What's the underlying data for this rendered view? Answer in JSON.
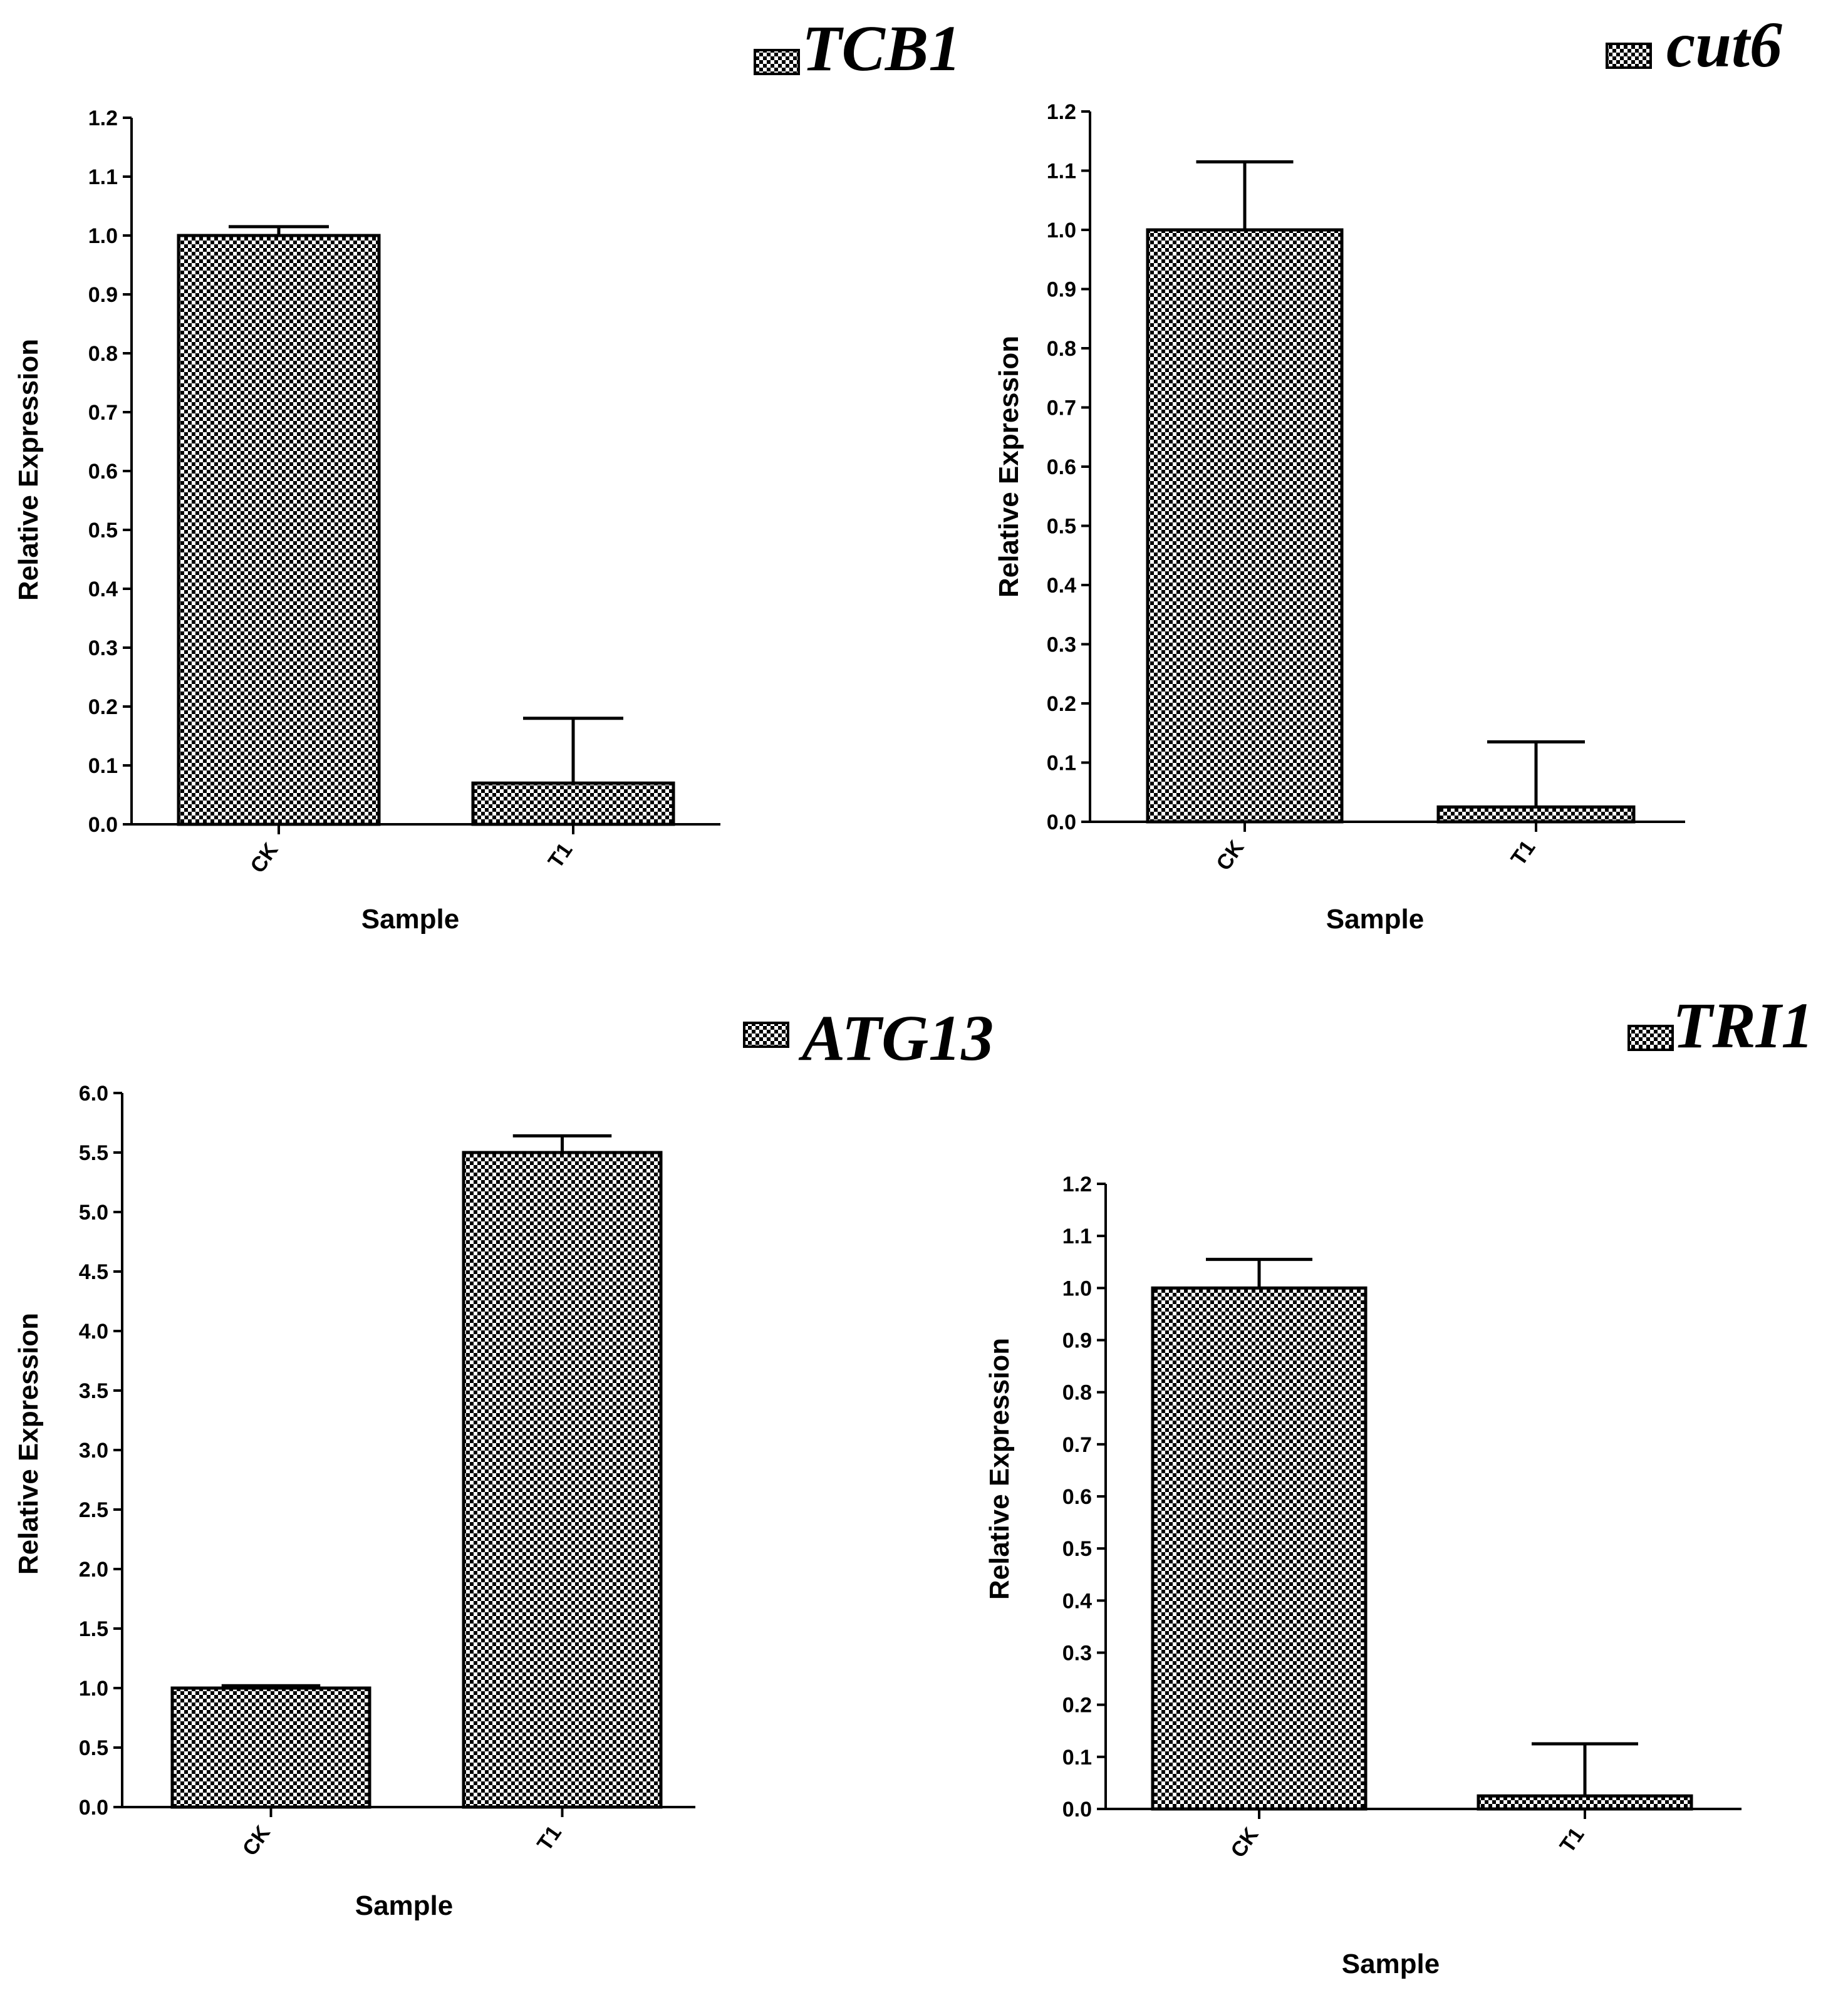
{
  "chart_data": [
    {
      "type": "bar",
      "title": "TCB1",
      "legend_position": "top-right",
      "categories": [
        "CK",
        "T1"
      ],
      "values": [
        1.0,
        0.07
      ],
      "errors": [
        0.015,
        0.11
      ],
      "xlabel": "Sample",
      "ylabel": "Relative Expression",
      "ylim": [
        0,
        1.2
      ],
      "yticks": [
        "0.0",
        "0.1",
        "0.2",
        "0.3",
        "0.4",
        "0.5",
        "0.6",
        "0.7",
        "0.8",
        "0.9",
        "1.0",
        "1.1",
        "1.2"
      ],
      "grid": false
    },
    {
      "type": "bar",
      "title": "cut6",
      "legend_position": "top-right",
      "categories": [
        "CK",
        "T1"
      ],
      "values": [
        1.0,
        0.025
      ],
      "errors": [
        0.115,
        0.11
      ],
      "xlabel": "Sample",
      "ylabel": "Relative Expression",
      "ylim": [
        0,
        1.2
      ],
      "yticks": [
        "0.0",
        "0.1",
        "0.2",
        "0.3",
        "0.4",
        "0.5",
        "0.6",
        "0.7",
        "0.8",
        "0.9",
        "1.0",
        "1.1",
        "1.2"
      ],
      "grid": false
    },
    {
      "type": "bar",
      "title": "ATG13",
      "legend_position": "top-right",
      "categories": [
        "CK",
        "T1"
      ],
      "values": [
        1.0,
        5.5
      ],
      "errors": [
        0.02,
        0.14
      ],
      "xlabel": "Sample",
      "ylabel": "Relative Expression",
      "ylim": [
        0,
        6.0
      ],
      "yticks": [
        "0.0",
        "0.5",
        "1.0",
        "1.5",
        "2.0",
        "2.5",
        "3.0",
        "3.5",
        "4.0",
        "4.5",
        "5.0",
        "5.5",
        "6.0"
      ],
      "grid": false
    },
    {
      "type": "bar",
      "title": "TRI1",
      "legend_position": "top-right",
      "categories": [
        "CK",
        "T1"
      ],
      "values": [
        1.0,
        0.025
      ],
      "errors": [
        0.055,
        0.1
      ],
      "xlabel": "Sample",
      "ylabel": "Relative Expression",
      "ylim": [
        0,
        1.2
      ],
      "yticks": [
        "0.0",
        "0.1",
        "0.2",
        "0.3",
        "0.4",
        "0.5",
        "0.6",
        "0.7",
        "0.8",
        "0.9",
        "1.0",
        "1.1",
        "1.2"
      ],
      "grid": false
    }
  ]
}
